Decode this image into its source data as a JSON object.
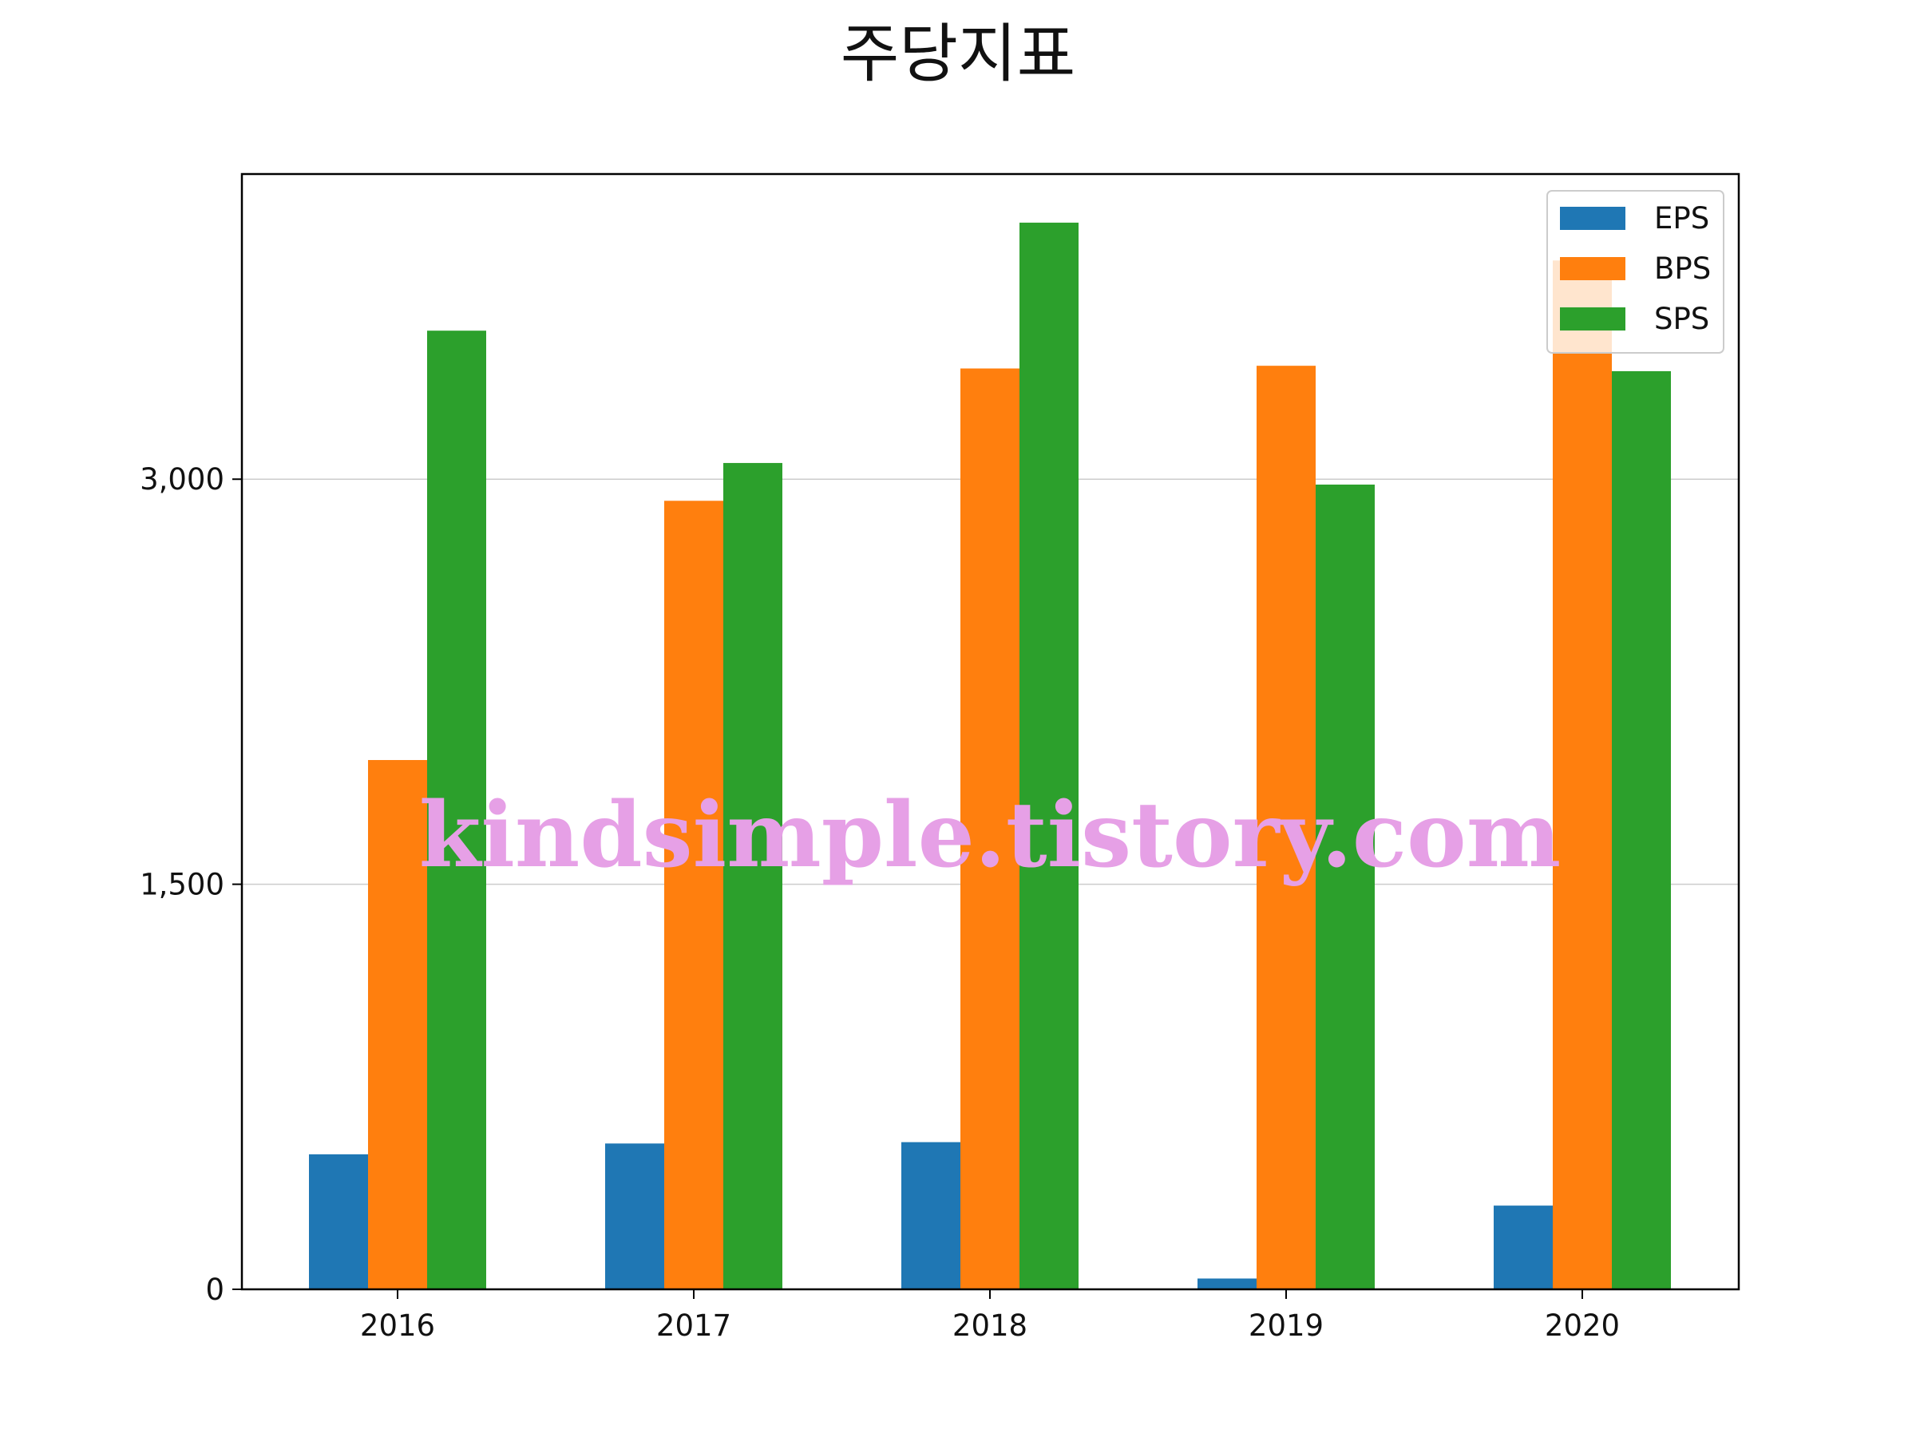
{
  "chart_data": {
    "type": "bar",
    "title": "주당지표",
    "xlabel": "",
    "ylabel": "",
    "categories": [
      "2016",
      "2017",
      "2018",
      "2019",
      "2020"
    ],
    "series": [
      {
        "name": "EPS",
        "color": "#1f77b4",
        "values": [
          500,
          540,
          545,
          40,
          310
        ]
      },
      {
        "name": "BPS",
        "color": "#ff7f0e",
        "values": [
          1960,
          2920,
          3410,
          3420,
          3810
        ]
      },
      {
        "name": "SPS",
        "color": "#2ca02c",
        "values": [
          3550,
          3060,
          3950,
          2980,
          3400
        ]
      }
    ],
    "ylim": [
      0,
      4130
    ],
    "yticks": [
      0,
      1500,
      3000
    ],
    "ytick_labels": [
      "0",
      "1,500",
      "3,000"
    ],
    "grid": {
      "y": true,
      "x": false
    },
    "legend_position": "top-right"
  },
  "watermark": "kindsimple.tistory.com"
}
